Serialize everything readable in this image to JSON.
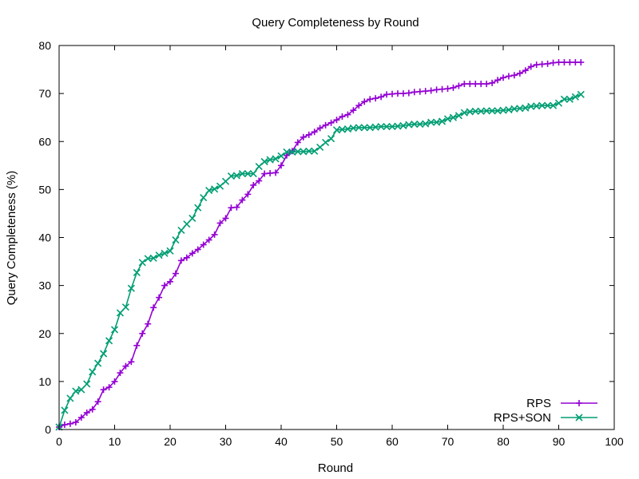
{
  "chart_data": {
    "type": "line",
    "title": "Query Completeness by Round",
    "xlabel": "Round",
    "ylabel": "Query Completeness (%)",
    "xlim": [
      0,
      100
    ],
    "ylim": [
      0,
      80
    ],
    "xticks": [
      0,
      10,
      20,
      30,
      40,
      50,
      60,
      70,
      80,
      90,
      100
    ],
    "yticks": [
      0,
      10,
      20,
      30,
      40,
      50,
      60,
      70,
      80
    ],
    "grid": false,
    "legend_position": "bottom-right",
    "series": [
      {
        "name": "RPS",
        "color": "#9400d3",
        "marker": "plus",
        "x": [
          0,
          1,
          2,
          3,
          4,
          5,
          6,
          7,
          8,
          9,
          10,
          11,
          12,
          13,
          14,
          15,
          16,
          17,
          18,
          19,
          20,
          21,
          22,
          23,
          24,
          25,
          26,
          27,
          28,
          29,
          30,
          31,
          32,
          33,
          34,
          35,
          36,
          37,
          38,
          39,
          40,
          41,
          42,
          43,
          44,
          45,
          46,
          47,
          48,
          49,
          50,
          51,
          52,
          53,
          54,
          55,
          56,
          57,
          58,
          59,
          60,
          61,
          62,
          63,
          64,
          65,
          66,
          67,
          68,
          69,
          70,
          71,
          72,
          73,
          74,
          75,
          76,
          77,
          78,
          79,
          80,
          81,
          82,
          83,
          84,
          85,
          86,
          87,
          88,
          89,
          90,
          91,
          92,
          93,
          94
        ],
        "y": [
          0.5,
          1.0,
          1.2,
          1.5,
          2.5,
          3.5,
          4.2,
          5.8,
          8.3,
          8.8,
          10.0,
          11.8,
          13.2,
          14.1,
          17.5,
          20.0,
          22.0,
          25.4,
          27.5,
          30.0,
          30.8,
          32.5,
          35.2,
          35.8,
          36.7,
          37.5,
          38.5,
          39.5,
          40.6,
          43.0,
          44.0,
          46.2,
          46.3,
          47.8,
          49.0,
          50.9,
          51.8,
          53.3,
          53.4,
          53.5,
          55.0,
          57.1,
          58.0,
          59.8,
          60.9,
          61.4,
          62.0,
          62.8,
          63.4,
          63.9,
          64.5,
          65.2,
          65.6,
          66.5,
          67.5,
          68.3,
          68.8,
          69.0,
          69.3,
          69.8,
          69.9,
          70.0,
          70.0,
          70.1,
          70.3,
          70.4,
          70.5,
          70.6,
          70.8,
          70.9,
          71.0,
          71.2,
          71.6,
          72.0,
          72.0,
          72.0,
          72.0,
          72.0,
          72.2,
          72.8,
          73.3,
          73.6,
          73.8,
          74.2,
          74.8,
          75.6,
          76.0,
          76.1,
          76.2,
          76.4,
          76.5,
          76.5,
          76.5,
          76.5,
          76.5
        ]
      },
      {
        "name": "RPS+SON",
        "color": "#009e73",
        "marker": "cross",
        "x": [
          0,
          1,
          2,
          3,
          4,
          5,
          6,
          7,
          8,
          9,
          10,
          11,
          12,
          13,
          14,
          15,
          16,
          17,
          18,
          19,
          20,
          21,
          22,
          23,
          24,
          25,
          26,
          27,
          28,
          29,
          30,
          31,
          32,
          33,
          34,
          35,
          36,
          37,
          38,
          39,
          40,
          41,
          42,
          43,
          44,
          45,
          46,
          47,
          48,
          49,
          50,
          51,
          52,
          53,
          54,
          55,
          56,
          57,
          58,
          59,
          60,
          61,
          62,
          63,
          64,
          65,
          66,
          67,
          68,
          69,
          70,
          71,
          72,
          73,
          74,
          75,
          76,
          77,
          78,
          79,
          80,
          81,
          82,
          83,
          84,
          85,
          86,
          87,
          88,
          89,
          90,
          91,
          92,
          93,
          94
        ],
        "y": [
          0.5,
          4.0,
          6.5,
          8.0,
          8.3,
          9.5,
          12.0,
          13.8,
          15.8,
          18.5,
          20.8,
          24.3,
          25.5,
          29.4,
          32.7,
          34.8,
          35.6,
          35.7,
          36.3,
          36.7,
          37.2,
          39.5,
          41.5,
          42.8,
          44.0,
          46.2,
          48.3,
          49.8,
          50.1,
          50.7,
          51.7,
          52.8,
          52.9,
          53.3,
          53.3,
          53.3,
          54.8,
          55.8,
          56.2,
          56.4,
          57.0,
          57.8,
          57.8,
          57.9,
          57.9,
          58.0,
          58.0,
          58.8,
          59.8,
          60.6,
          62.4,
          62.5,
          62.6,
          62.8,
          62.9,
          62.9,
          62.9,
          63.0,
          63.1,
          63.1,
          63.1,
          63.2,
          63.3,
          63.5,
          63.6,
          63.6,
          63.7,
          64.0,
          64.0,
          64.2,
          64.7,
          65.0,
          65.4,
          66.0,
          66.2,
          66.3,
          66.3,
          66.4,
          66.4,
          66.4,
          66.5,
          66.6,
          66.8,
          66.9,
          67.0,
          67.3,
          67.4,
          67.5,
          67.5,
          67.5,
          68.0,
          68.8,
          68.8,
          69.3,
          69.8
        ]
      }
    ]
  }
}
